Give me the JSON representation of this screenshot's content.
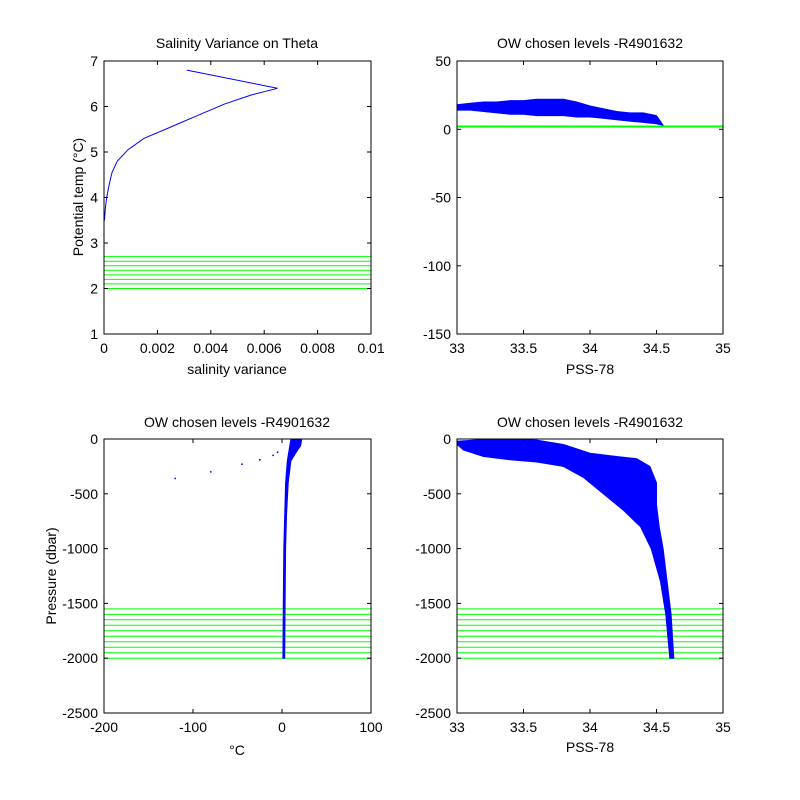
{
  "figure": {
    "background": "#ffffff",
    "data_color": "#0000ff",
    "level_color": "#00ff00"
  },
  "chart_data": [
    {
      "id": "p1",
      "type": "line",
      "title": "Salinity Variance on Theta",
      "xlabel": "salinity variance",
      "ylabel": "Potential temp (°C)",
      "xlim": [
        0,
        0.01
      ],
      "ylim": [
        1,
        7
      ],
      "xticks": [
        0,
        0.002,
        0.004,
        0.006,
        0.008,
        0.01
      ],
      "xtick_labels": [
        "0",
        "0.002",
        "0.004",
        "0.006",
        "0.008",
        "0.01"
      ],
      "yticks": [
        1,
        2,
        3,
        4,
        5,
        6,
        7
      ],
      "ytick_labels": [
        "1",
        "2",
        "3",
        "4",
        "5",
        "6",
        "7"
      ],
      "series": [
        {
          "color": "#0000ff",
          "points": [
            [
              0.0031,
              6.8
            ],
            [
              0.0065,
              6.4
            ],
            [
              0.0055,
              6.25
            ],
            [
              0.0045,
              6.05
            ],
            [
              0.0035,
              5.8
            ],
            [
              0.0025,
              5.55
            ],
            [
              0.0015,
              5.3
            ],
            [
              0.0009,
              5.05
            ],
            [
              0.0005,
              4.8
            ],
            [
              0.0003,
              4.55
            ],
            [
              0.0002,
              4.3
            ],
            [
              0.0001,
              4.0
            ],
            [
              5e-05,
              3.75
            ],
            [
              2e-05,
              3.5
            ]
          ]
        }
      ],
      "levels": [
        2.0,
        2.1,
        2.2,
        2.3,
        2.4,
        2.5,
        2.6,
        2.7
      ],
      "grid": false
    },
    {
      "id": "p2",
      "type": "line",
      "title": "OW chosen levels -R4901632",
      "xlabel": "PSS-78",
      "ylabel": "",
      "xlim": [
        33,
        35
      ],
      "ylim": [
        -150,
        50
      ],
      "xticks": [
        33,
        33.5,
        34,
        34.5,
        35
      ],
      "xtick_labels": [
        "33",
        "33.5",
        "34",
        "34.5",
        "35"
      ],
      "yticks": [
        -150,
        -100,
        -50,
        0,
        50
      ],
      "ytick_labels": [
        "-150",
        "-100",
        "-50",
        "0",
        "50"
      ],
      "profile_band": {
        "color": "#0000ff",
        "upper": [
          [
            33.0,
            18
          ],
          [
            33.1,
            19
          ],
          [
            33.2,
            20
          ],
          [
            33.3,
            20
          ],
          [
            33.4,
            21
          ],
          [
            33.5,
            21
          ],
          [
            33.6,
            22
          ],
          [
            33.7,
            22
          ],
          [
            33.8,
            22
          ],
          [
            33.9,
            20
          ],
          [
            34.0,
            17
          ],
          [
            34.1,
            15
          ],
          [
            34.2,
            13
          ],
          [
            34.3,
            12
          ],
          [
            34.4,
            12
          ],
          [
            34.5,
            10
          ]
        ],
        "lower": [
          [
            34.55,
            3
          ],
          [
            34.5,
            4
          ],
          [
            34.4,
            5
          ],
          [
            34.3,
            6
          ],
          [
            34.2,
            7
          ],
          [
            34.1,
            8
          ],
          [
            34.0,
            9
          ],
          [
            33.9,
            9
          ],
          [
            33.8,
            10
          ],
          [
            33.7,
            10
          ],
          [
            33.6,
            10
          ],
          [
            33.5,
            11
          ],
          [
            33.4,
            11
          ],
          [
            33.3,
            12
          ],
          [
            33.2,
            13
          ],
          [
            33.1,
            14
          ],
          [
            33.0,
            14
          ]
        ]
      },
      "levels": [
        2
      ],
      "grid": false
    },
    {
      "id": "p3",
      "type": "line",
      "title": "OW chosen levels -R4901632",
      "xlabel": "°C",
      "ylabel": "Pressure (dbar)",
      "xlim": [
        -200,
        100
      ],
      "ylim": [
        -2500,
        0
      ],
      "xticks": [
        -200,
        -100,
        0,
        100
      ],
      "xtick_labels": [
        "-200",
        "-100",
        "0",
        "100"
      ],
      "yticks": [
        -2500,
        -2000,
        -1500,
        -1000,
        -500,
        0
      ],
      "ytick_labels": [
        "-2500",
        "-2000",
        "-1500",
        "-1000",
        "-500",
        "0"
      ],
      "profile_band": {
        "color": "#0000ff",
        "upper": [
          [
            10,
            -5
          ],
          [
            22,
            -5
          ],
          [
            21,
            -60
          ],
          [
            16,
            -120
          ],
          [
            10,
            -200
          ],
          [
            7,
            -400
          ],
          [
            5,
            -700
          ],
          [
            4,
            -1000
          ],
          [
            3.5,
            -1500
          ],
          [
            3,
            -2000
          ]
        ],
        "lower": [
          [
            1,
            -2000
          ],
          [
            1.5,
            -1500
          ],
          [
            2,
            -1000
          ],
          [
            3,
            -700
          ],
          [
            4,
            -400
          ],
          [
            6,
            -200
          ],
          [
            8,
            -100
          ],
          [
            9,
            -50
          ]
        ]
      },
      "scatter": [
        [
          -120,
          -360
        ],
        [
          -80,
          -300
        ],
        [
          -45,
          -230
        ],
        [
          -25,
          -190
        ],
        [
          -10,
          -150
        ],
        [
          -5,
          -120
        ]
      ],
      "levels": [
        -1550,
        -1600,
        -1650,
        -1700,
        -1750,
        -1800,
        -1850,
        -1900,
        -1950,
        -2000
      ],
      "grid": false
    },
    {
      "id": "p4",
      "type": "line",
      "title": "OW chosen levels -R4901632",
      "xlabel": "PSS-78",
      "ylabel": "",
      "xlim": [
        33,
        35
      ],
      "ylim": [
        -2500,
        0
      ],
      "xticks": [
        33,
        33.5,
        34,
        34.5,
        35
      ],
      "xtick_labels": [
        "33",
        "33.5",
        "34",
        "34.5",
        "35"
      ],
      "yticks": [
        -2500,
        -2000,
        -1500,
        -1000,
        -500,
        0
      ],
      "ytick_labels": [
        "-2500",
        "-2000",
        "-1500",
        "-1000",
        "-500",
        "0"
      ],
      "profile_band": {
        "color": "#0000ff",
        "upper": [
          [
            33.0,
            -20
          ],
          [
            33.2,
            -5
          ],
          [
            33.4,
            -5
          ],
          [
            33.6,
            -10
          ],
          [
            33.8,
            -50
          ],
          [
            34.0,
            -130
          ],
          [
            34.2,
            -160
          ],
          [
            34.35,
            -180
          ],
          [
            34.45,
            -250
          ],
          [
            34.5,
            -400
          ],
          [
            34.5,
            -600
          ],
          [
            34.52,
            -800
          ],
          [
            34.55,
            -1000
          ],
          [
            34.58,
            -1300
          ],
          [
            34.61,
            -1600
          ],
          [
            34.63,
            -2000
          ]
        ],
        "lower": [
          [
            34.6,
            -2000
          ],
          [
            34.57,
            -1600
          ],
          [
            34.53,
            -1300
          ],
          [
            34.46,
            -1000
          ],
          [
            34.38,
            -800
          ],
          [
            34.25,
            -650
          ],
          [
            34.1,
            -500
          ],
          [
            33.95,
            -350
          ],
          [
            33.8,
            -250
          ],
          [
            33.6,
            -210
          ],
          [
            33.4,
            -190
          ],
          [
            33.2,
            -160
          ],
          [
            33.05,
            -100
          ],
          [
            33.0,
            -50
          ]
        ]
      },
      "levels": [
        -1550,
        -1600,
        -1650,
        -1700,
        -1750,
        -1800,
        -1850,
        -1900,
        -1950,
        -2000
      ],
      "grid": false
    }
  ]
}
